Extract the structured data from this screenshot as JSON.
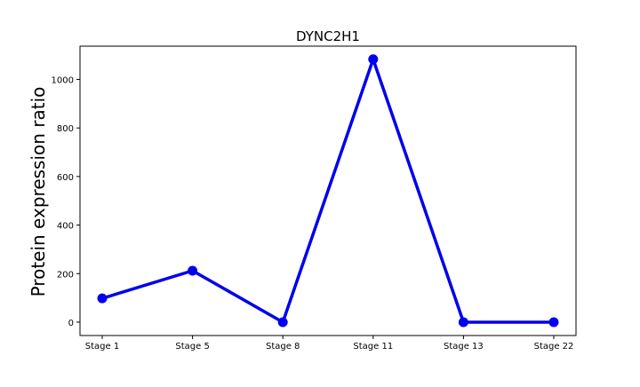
{
  "chart_data": {
    "type": "line",
    "title": "DYNC2H1",
    "xlabel": "",
    "ylabel": "Protein expression ratio",
    "categories": [
      "Stage 1",
      "Stage 5",
      "Stage 8",
      "Stage 11",
      "Stage 13",
      "Stage 22"
    ],
    "series": [
      {
        "values": [
          98,
          212,
          0,
          1083,
          0,
          0
        ],
        "color": "#0000ee",
        "marker": "circle"
      }
    ],
    "ylim": [
      -55,
      1137
    ],
    "yticks": [
      0,
      200,
      400,
      600,
      800,
      1000
    ],
    "grid": false,
    "legend": "none"
  }
}
